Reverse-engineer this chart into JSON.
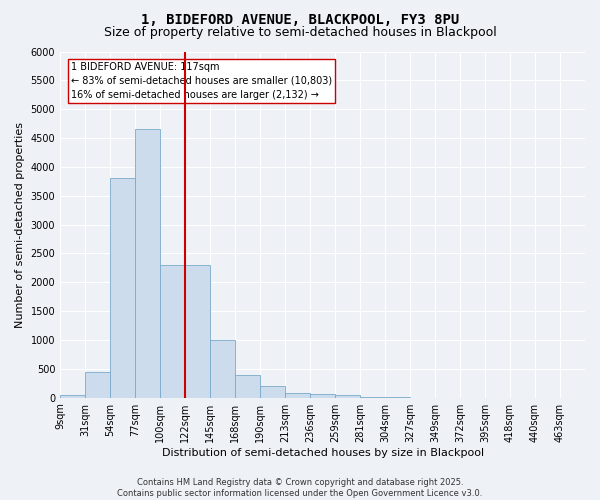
{
  "title": "1, BIDEFORD AVENUE, BLACKPOOL, FY3 8PU",
  "subtitle": "Size of property relative to semi-detached houses in Blackpool",
  "xlabel": "Distribution of semi-detached houses by size in Blackpool",
  "ylabel": "Number of semi-detached properties",
  "bar_values": [
    50,
    450,
    3800,
    4650,
    2300,
    2300,
    1000,
    400,
    200,
    90,
    70,
    40,
    15,
    5,
    3,
    2,
    1,
    1,
    0,
    0,
    0
  ],
  "tick_labels": [
    "9sqm",
    "31sqm",
    "54sqm",
    "77sqm",
    "100sqm",
    "122sqm",
    "145sqm",
    "168sqm",
    "190sqm",
    "213sqm",
    "236sqm",
    "259sqm",
    "281sqm",
    "304sqm",
    "327sqm",
    "349sqm",
    "372sqm",
    "395sqm",
    "418sqm",
    "440sqm",
    "463sqm"
  ],
  "red_line_index": 5,
  "bar_color": "#ccdcec",
  "bar_edge_color": "#7aaaca",
  "red_line_color": "#cc0000",
  "annotation_title": "1 BIDEFORD AVENUE: 117sqm",
  "annotation_line1": "← 83% of semi-detached houses are smaller (10,803)",
  "annotation_line2": "16% of semi-detached houses are larger (2,132) →",
  "annotation_box_color": "#ffffff",
  "annotation_border_color": "#cc0000",
  "ylim": [
    0,
    6000
  ],
  "yticks": [
    0,
    500,
    1000,
    1500,
    2000,
    2500,
    3000,
    3500,
    4000,
    4500,
    5000,
    5500,
    6000
  ],
  "background_color": "#eef2f7",
  "grid_color": "#ffffff",
  "footer_line1": "Contains HM Land Registry data © Crown copyright and database right 2025.",
  "footer_line2": "Contains public sector information licensed under the Open Government Licence v3.0.",
  "title_fontsize": 10,
  "subtitle_fontsize": 9,
  "axis_label_fontsize": 8,
  "tick_fontsize": 7,
  "annotation_fontsize": 7,
  "footer_fontsize": 6
}
